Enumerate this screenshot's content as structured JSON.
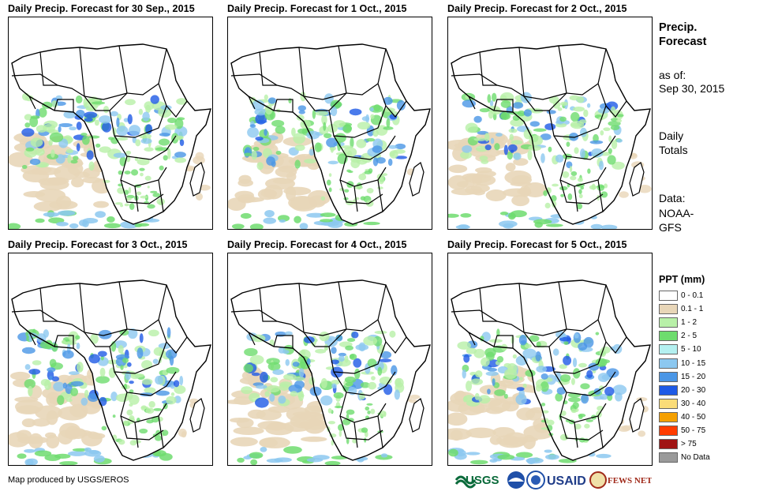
{
  "panels": [
    {
      "title": "Daily Precip. Forecast for 30 Sep., 2015"
    },
    {
      "title": "Daily Precip. Forecast for 1 Oct., 2015"
    },
    {
      "title": "Daily Precip. Forecast for 2 Oct., 2015"
    },
    {
      "title": "Daily Precip. Forecast for 3 Oct., 2015"
    },
    {
      "title": "Daily Precip. Forecast for 4 Oct., 2015"
    },
    {
      "title": "Daily Precip. Forecast for 5 Oct., 2015"
    }
  ],
  "sidebar": {
    "heading_line1": "Precip.",
    "heading_line2": "Forecast",
    "asof_label": "as of:",
    "asof_date": "Sep 30, 2015",
    "totals_line1": "Daily",
    "totals_line2": "Totals",
    "data_line1": "Data:",
    "data_line2": "NOAA-",
    "data_line3": "GFS"
  },
  "legend": {
    "title": "PPT (mm)",
    "items": [
      {
        "label": "0 - 0.1",
        "color": "#ffffff"
      },
      {
        "label": "0.1 - 1",
        "color": "#e8d6b8"
      },
      {
        "label": "1 - 2",
        "color": "#b8f0a8"
      },
      {
        "label": "2 - 5",
        "color": "#6edc6e"
      },
      {
        "label": "5 - 10",
        "color": "#b4f0f0"
      },
      {
        "label": "10 - 15",
        "color": "#8cc8f0"
      },
      {
        "label": "15 - 20",
        "color": "#4a96e6"
      },
      {
        "label": "20 - 30",
        "color": "#1e5ae6"
      },
      {
        "label": "30 - 40",
        "color": "#fadc78"
      },
      {
        "label": "40 - 50",
        "color": "#f5a000"
      },
      {
        "label": "50 - 75",
        "color": "#ff3c00"
      },
      {
        "label": "> 75",
        "color": "#a01414"
      },
      {
        "label": "No Data",
        "color": "#9a9a9a"
      }
    ]
  },
  "footer": {
    "credit": "Map produced by USGS/EROS"
  },
  "logos": {
    "usgs": "USGS",
    "usaid": "USAID",
    "fewsnet": "FEWS NET"
  }
}
